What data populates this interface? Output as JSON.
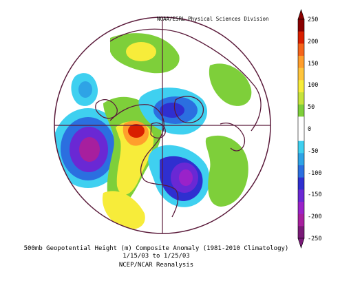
{
  "credit": "NOAA/ESRL Physical Sciences Division",
  "caption": {
    "line1": "500mb Geopotential Height (m) Composite Anomaly (1981-2010 Climatology)",
    "line2": "1/15/03 to 1/25/03",
    "line3": "NCEP/NCAR Reanalysis"
  },
  "colorbar": {
    "labels": [
      "250",
      "200",
      "150",
      "100",
      "50",
      "0",
      "-50",
      "-100",
      "-150",
      "-200",
      "-250"
    ],
    "colors": [
      "#8a0000",
      "#d91f00",
      "#f5641a",
      "#ff9e2c",
      "#ffc53c",
      "#f7ec3a",
      "#c6e33c",
      "#7ecf3a",
      "#ffffff",
      "#ffffff",
      "#3fd0f0",
      "#2ea3e6",
      "#2b6fe0",
      "#2f2fd0",
      "#6a28d4",
      "#9a22c9",
      "#a71f9e",
      "#7a1a78"
    ]
  },
  "map": {
    "anomaly_centers": [
      {
        "name": "pacific-low",
        "sign": "negative",
        "level": "-200"
      },
      {
        "name": "western-north-america-ridge",
        "sign": "positive",
        "level": "150"
      },
      {
        "name": "eastern-north-america-trough",
        "sign": "negative",
        "level": "-150"
      },
      {
        "name": "arctic-low",
        "sign": "negative",
        "level": "-100"
      },
      {
        "name": "atlantic-ridge",
        "sign": "positive",
        "level": "50"
      }
    ]
  }
}
